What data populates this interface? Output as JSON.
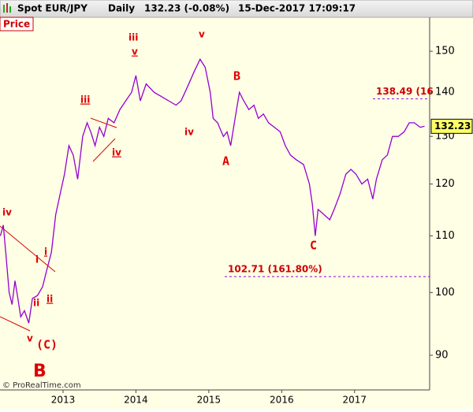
{
  "chart_data": {
    "type": "line",
    "header": [
      "Spot EUR/JPY",
      "Daily",
      "132.23 (-0.08%)",
      "15-Dec-2017 17:09:17"
    ],
    "panel_label": "Price",
    "credit": "© ProRealTime.com",
    "log_scale": true,
    "grid": false,
    "x": [
      2012.14,
      2012.18,
      2012.22,
      2012.26,
      2012.3,
      2012.34,
      2012.38,
      2012.42,
      2012.47,
      2012.53,
      2012.58,
      2012.65,
      2012.72,
      2012.78,
      2012.84,
      2012.9,
      2012.96,
      2013.02,
      2013.08,
      2013.14,
      2013.2,
      2013.27,
      2013.33,
      2013.38,
      2013.44,
      2013.5,
      2013.56,
      2013.62,
      2013.7,
      2013.78,
      2013.86,
      2013.94,
      2014.0,
      2014.06,
      2014.14,
      2014.25,
      2014.35,
      2014.45,
      2014.55,
      2014.62,
      2014.7,
      2014.8,
      2014.88,
      2014.95,
      2015.02,
      2015.06,
      2015.12,
      2015.2,
      2015.25,
      2015.3,
      2015.36,
      2015.42,
      2015.48,
      2015.55,
      2015.62,
      2015.68,
      2015.75,
      2015.82,
      2015.9,
      2015.98,
      2016.05,
      2016.12,
      2016.2,
      2016.3,
      2016.38,
      2016.42,
      2016.46,
      2016.5,
      2016.58,
      2016.66,
      2016.72,
      2016.8,
      2016.88,
      2016.95,
      2017.02,
      2017.1,
      2017.18,
      2017.25,
      2017.3,
      2017.38,
      2017.45,
      2017.52,
      2017.6,
      2017.68,
      2017.75,
      2017.82,
      2017.9,
      2017.96
    ],
    "series": [
      {
        "name": "Spot EUR/JPY",
        "color": "#9400d3",
        "values": [
          110,
          112,
          106,
          100,
          98,
          102,
          99,
          96,
          97,
          95,
          99,
          99.5,
          101,
          104,
          107,
          114,
          118,
          122,
          128,
          126,
          121,
          130,
          133,
          131,
          128,
          132,
          130,
          134,
          133,
          136,
          138,
          140,
          144,
          138,
          142,
          140,
          139,
          138,
          137,
          138,
          141,
          145,
          148,
          146,
          140,
          134,
          133,
          130,
          131,
          128,
          134,
          140,
          138,
          136,
          137,
          134,
          135,
          133,
          132,
          131,
          128,
          126,
          125,
          124,
          120,
          116,
          110,
          115,
          114,
          113,
          115,
          118,
          122,
          123,
          122,
          120,
          121,
          117,
          121,
          125,
          126,
          130,
          130,
          131,
          133,
          133,
          132,
          132.23
        ]
      }
    ],
    "last_price": {
      "value": 132.23,
      "label": "132.23"
    },
    "levels": [
      {
        "value": 138.49,
        "label": "138.49 (16"
      },
      {
        "value": 102.71,
        "label": "102.71 (161.80%)"
      }
    ],
    "annotations": [
      "iv",
      "i",
      "i",
      "ii",
      "ii",
      "v",
      "(C)",
      "B",
      "iii",
      "v",
      "iii",
      "iv",
      "v",
      "iv",
      "B",
      "A",
      "C"
    ],
    "xlim": [
      2012.135,
      2018.03
    ],
    "xticks": [
      2013,
      2014,
      2015,
      2016,
      2017
    ],
    "ylim": [
      84.9,
      158.8
    ],
    "yticks": [
      90,
      100,
      110,
      120,
      130,
      140,
      150
    ]
  }
}
